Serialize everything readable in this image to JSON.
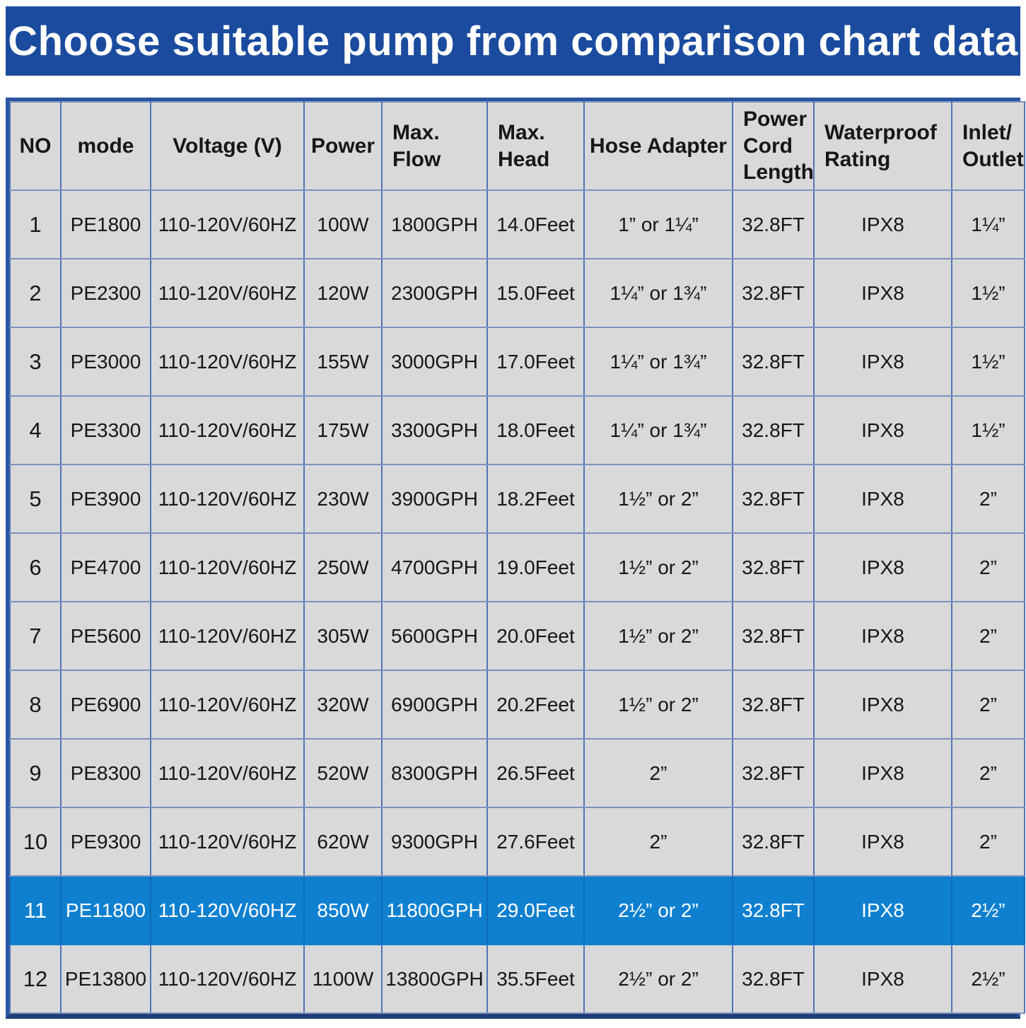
{
  "banner": {
    "title": "Choose suitable pump from comparison chart data"
  },
  "colors": {
    "banner_background": "#1a4b9f",
    "banner_text": "#ffffff",
    "cell_background": "#d9d9d9",
    "grid_line": "#4f74b5",
    "outer_frame": "#2b55a2",
    "highlight_row_background": "#0f80d0",
    "highlight_row_text": "#ffffff",
    "body_text": "#161616"
  },
  "table": {
    "highlight_row_no": "11",
    "columns": [
      {
        "key": "no",
        "label": "NO"
      },
      {
        "key": "mode",
        "label": "mode"
      },
      {
        "key": "voltage",
        "label": "Voltage (V)"
      },
      {
        "key": "power",
        "label": "Power"
      },
      {
        "key": "max_flow",
        "label": "Max.\nFlow"
      },
      {
        "key": "max_head",
        "label": "Max.\nHead"
      },
      {
        "key": "hose_adapter",
        "label": "Hose Adapter"
      },
      {
        "key": "cord_length",
        "label": "Power\nCord\nLength"
      },
      {
        "key": "waterproof",
        "label": "Waterproof\nRating"
      },
      {
        "key": "inlet_outlet",
        "label": "Inlet/\nOutlet"
      }
    ],
    "rows": [
      {
        "no": "1",
        "mode": "PE1800",
        "voltage": "110-120V/60HZ",
        "power": "100W",
        "max_flow": "1800GPH",
        "max_head": "14.0Feet",
        "hose_adapter": "1” or 1¼”",
        "cord_length": "32.8FT",
        "waterproof": "IPX8",
        "inlet_outlet": "1¼”"
      },
      {
        "no": "2",
        "mode": "PE2300",
        "voltage": "110-120V/60HZ",
        "power": "120W",
        "max_flow": "2300GPH",
        "max_head": "15.0Feet",
        "hose_adapter": "1¼” or 1¾”",
        "cord_length": "32.8FT",
        "waterproof": "IPX8",
        "inlet_outlet": "1½”"
      },
      {
        "no": "3",
        "mode": "PE3000",
        "voltage": "110-120V/60HZ",
        "power": "155W",
        "max_flow": "3000GPH",
        "max_head": "17.0Feet",
        "hose_adapter": "1¼” or 1¾”",
        "cord_length": "32.8FT",
        "waterproof": "IPX8",
        "inlet_outlet": "1½”"
      },
      {
        "no": "4",
        "mode": "PE3300",
        "voltage": "110-120V/60HZ",
        "power": "175W",
        "max_flow": "3300GPH",
        "max_head": "18.0Feet",
        "hose_adapter": "1¼” or 1¾”",
        "cord_length": "32.8FT",
        "waterproof": "IPX8",
        "inlet_outlet": "1½”"
      },
      {
        "no": "5",
        "mode": "PE3900",
        "voltage": "110-120V/60HZ",
        "power": "230W",
        "max_flow": "3900GPH",
        "max_head": "18.2Feet",
        "hose_adapter": "1½” or 2”",
        "cord_length": "32.8FT",
        "waterproof": "IPX8",
        "inlet_outlet": "2”"
      },
      {
        "no": "6",
        "mode": "PE4700",
        "voltage": "110-120V/60HZ",
        "power": "250W",
        "max_flow": "4700GPH",
        "max_head": "19.0Feet",
        "hose_adapter": "1½” or 2”",
        "cord_length": "32.8FT",
        "waterproof": "IPX8",
        "inlet_outlet": "2”"
      },
      {
        "no": "7",
        "mode": "PE5600",
        "voltage": "110-120V/60HZ",
        "power": "305W",
        "max_flow": "5600GPH",
        "max_head": "20.0Feet",
        "hose_adapter": "1½” or 2”",
        "cord_length": "32.8FT",
        "waterproof": "IPX8",
        "inlet_outlet": "2”"
      },
      {
        "no": "8",
        "mode": "PE6900",
        "voltage": "110-120V/60HZ",
        "power": "320W",
        "max_flow": "6900GPH",
        "max_head": "20.2Feet",
        "hose_adapter": "1½” or 2”",
        "cord_length": "32.8FT",
        "waterproof": "IPX8",
        "inlet_outlet": "2”"
      },
      {
        "no": "9",
        "mode": "PE8300",
        "voltage": "110-120V/60HZ",
        "power": "520W",
        "max_flow": "8300GPH",
        "max_head": "26.5Feet",
        "hose_adapter": "2”",
        "cord_length": "32.8FT",
        "waterproof": "IPX8",
        "inlet_outlet": "2”"
      },
      {
        "no": "10",
        "mode": "PE9300",
        "voltage": "110-120V/60HZ",
        "power": "620W",
        "max_flow": "9300GPH",
        "max_head": "27.6Feet",
        "hose_adapter": "2”",
        "cord_length": "32.8FT",
        "waterproof": "IPX8",
        "inlet_outlet": "2”"
      },
      {
        "no": "11",
        "mode": "PE11800",
        "voltage": "110-120V/60HZ",
        "power": "850W",
        "max_flow": "11800GPH",
        "max_head": "29.0Feet",
        "hose_adapter": "2½” or 2”",
        "cord_length": "32.8FT",
        "waterproof": "IPX8",
        "inlet_outlet": "2½”"
      },
      {
        "no": "12",
        "mode": "PE13800",
        "voltage": "110-120V/60HZ",
        "power": "1100W",
        "max_flow": "13800GPH",
        "max_head": "35.5Feet",
        "hose_adapter": "2½” or 2”",
        "cord_length": "32.8FT",
        "waterproof": "IPX8",
        "inlet_outlet": "2½”"
      }
    ]
  }
}
